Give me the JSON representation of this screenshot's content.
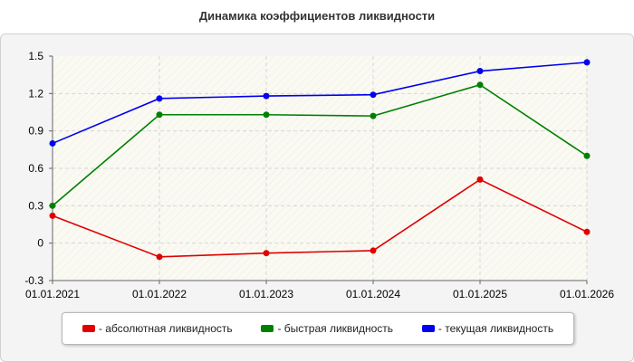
{
  "chart_data": {
    "type": "line",
    "title": "Динамика коэффициентов ликвидности",
    "xlabel": "",
    "ylabel": "",
    "categories": [
      "01.01.2021",
      "01.01.2022",
      "01.01.2023",
      "01.01.2024",
      "01.01.2025",
      "01.01.2026"
    ],
    "ylim": [
      -0.3,
      1.5
    ],
    "y_ticks": [
      "1.5",
      "1.2",
      "0.9",
      "0.6",
      "0.3",
      "0",
      "-0.3"
    ],
    "grid": true,
    "legend_position": "bottom",
    "series": [
      {
        "name": "- абсолютная ликвидность",
        "color": "#e00000",
        "values": [
          0.22,
          -0.11,
          -0.08,
          -0.06,
          0.51,
          0.09
        ]
      },
      {
        "name": "- быстрая ликвидность",
        "color": "#008000",
        "values": [
          0.3,
          1.03,
          1.03,
          1.02,
          1.27,
          0.7
        ]
      },
      {
        "name": "- текущая ликвидность",
        "color": "#0000ee",
        "values": [
          0.8,
          1.16,
          1.18,
          1.19,
          1.38,
          1.45
        ]
      }
    ]
  }
}
